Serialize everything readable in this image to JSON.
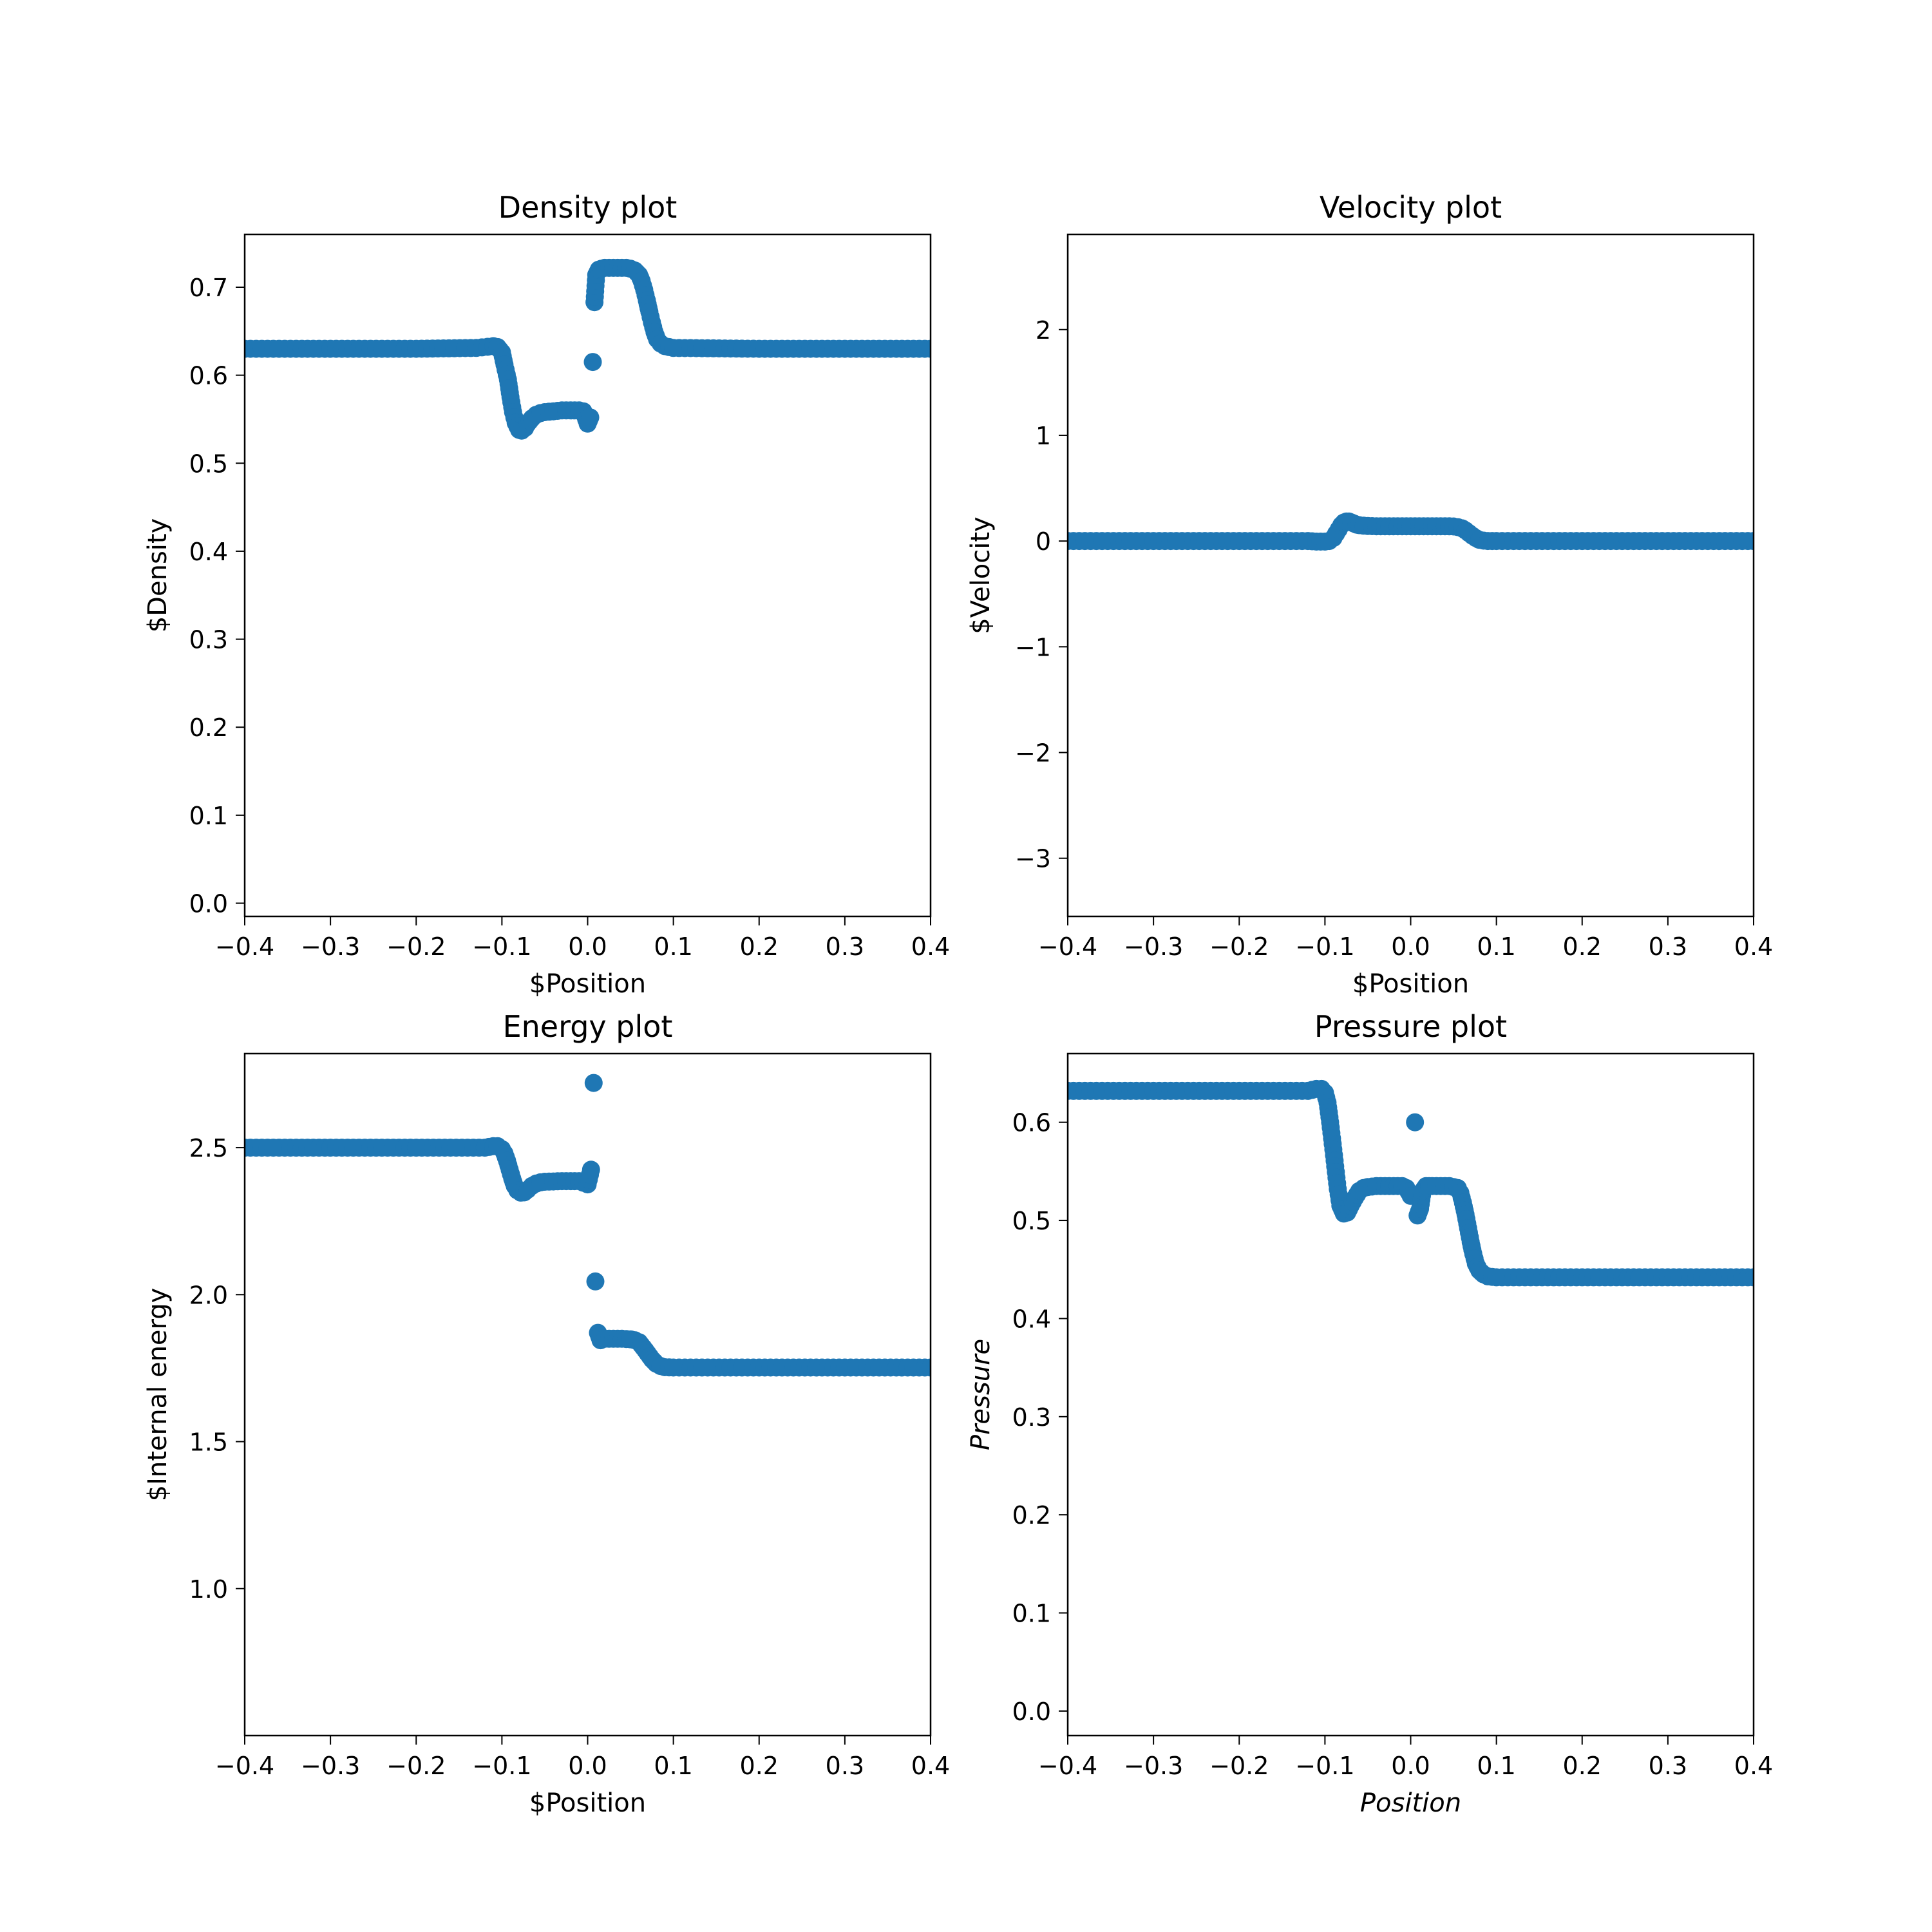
{
  "chart_data": [
    {
      "type": "scatter",
      "title": "Density plot",
      "xlabel": "$Position",
      "ylabel": "$Density",
      "xlim": [
        -0.4,
        0.4
      ],
      "ylim": [
        -0.015,
        0.76
      ],
      "xticks": [
        -0.4,
        -0.3,
        -0.2,
        -0.1,
        0.0,
        0.1,
        0.2,
        0.3,
        0.4
      ],
      "xtick_labels": [
        "−0.4",
        "−0.3",
        "−0.2",
        "−0.1",
        "0.0",
        "0.1",
        "0.2",
        "0.3",
        "0.4"
      ],
      "yticks": [
        0.0,
        0.1,
        0.2,
        0.3,
        0.4,
        0.5,
        0.6,
        0.7
      ],
      "ytick_labels": [
        "0.0",
        "0.1",
        "0.2",
        "0.3",
        "0.4",
        "0.5",
        "0.6",
        "0.7"
      ],
      "grid": false,
      "legend": "none",
      "color": "#1f77b4",
      "series": [
        {
          "x": [
            -0.4,
            -0.2,
            -0.13,
            -0.11,
            -0.105,
            -0.1,
            -0.097,
            -0.093,
            -0.09,
            -0.087,
            -0.084,
            -0.08,
            -0.077,
            -0.073,
            -0.07,
            -0.065,
            -0.06,
            -0.055,
            -0.05,
            -0.04,
            -0.03,
            -0.02,
            -0.01,
            -0.005,
            0.0,
            0.003,
            0.006,
            0.008,
            0.01,
            0.013,
            0.016,
            0.02,
            0.025,
            0.03,
            0.035,
            0.04,
            0.045,
            0.05,
            0.055,
            0.06,
            0.063,
            0.066,
            0.069,
            0.072,
            0.075,
            0.078,
            0.081,
            0.085,
            0.09,
            0.1,
            0.2,
            0.4
          ],
          "y": [
            0.63,
            0.63,
            0.631,
            0.633,
            0.632,
            0.626,
            0.612,
            0.595,
            0.575,
            0.558,
            0.546,
            0.538,
            0.537,
            0.54,
            0.545,
            0.551,
            0.555,
            0.557,
            0.558,
            0.559,
            0.56,
            0.56,
            0.56,
            0.559,
            0.545,
            0.552,
            0.615,
            0.683,
            0.714,
            0.72,
            0.721,
            0.722,
            0.722,
            0.722,
            0.722,
            0.722,
            0.722,
            0.721,
            0.719,
            0.714,
            0.707,
            0.697,
            0.685,
            0.672,
            0.66,
            0.649,
            0.641,
            0.636,
            0.633,
            0.631,
            0.63,
            0.63
          ]
        }
      ]
    },
    {
      "type": "scatter",
      "title": "Velocity plot",
      "xlabel": "$Position",
      "ylabel": "$Velocity",
      "xlim": [
        -0.4,
        0.4
      ],
      "ylim": [
        -3.55,
        2.9
      ],
      "xticks": [
        -0.4,
        -0.3,
        -0.2,
        -0.1,
        0.0,
        0.1,
        0.2,
        0.3,
        0.4
      ],
      "xtick_labels": [
        "−0.4",
        "−0.3",
        "−0.2",
        "−0.1",
        "0.0",
        "0.1",
        "0.2",
        "0.3",
        "0.4"
      ],
      "yticks": [
        -3,
        -2,
        -1,
        0,
        1,
        2
      ],
      "ytick_labels": [
        "−3",
        "−2",
        "−1",
        "0",
        "1",
        "2"
      ],
      "grid": false,
      "legend": "none",
      "color": "#1f77b4",
      "series": [
        {
          "x": [
            -0.4,
            -0.2,
            -0.12,
            -0.11,
            -0.1,
            -0.095,
            -0.09,
            -0.087,
            -0.084,
            -0.081,
            -0.078,
            -0.075,
            -0.072,
            -0.069,
            -0.066,
            -0.063,
            -0.06,
            -0.055,
            -0.05,
            -0.04,
            -0.03,
            -0.02,
            -0.01,
            0.0,
            0.01,
            0.02,
            0.03,
            0.04,
            0.05,
            0.055,
            0.06,
            0.064,
            0.068,
            0.072,
            0.076,
            0.08,
            0.085,
            0.09,
            0.1,
            0.2,
            0.4
          ],
          "y": [
            0.0,
            0.0,
            0.0,
            -0.005,
            -0.005,
            0.0,
            0.03,
            0.07,
            0.11,
            0.15,
            0.175,
            0.185,
            0.185,
            0.175,
            0.165,
            0.155,
            0.15,
            0.145,
            0.142,
            0.14,
            0.14,
            0.14,
            0.14,
            0.14,
            0.14,
            0.14,
            0.14,
            0.14,
            0.138,
            0.132,
            0.12,
            0.1,
            0.075,
            0.05,
            0.028,
            0.012,
            0.004,
            0.0,
            0.0,
            0.0,
            0.0
          ]
        }
      ]
    },
    {
      "type": "scatter",
      "title": "Energy plot",
      "xlabel": "$Position",
      "ylabel": "$Internal energy",
      "xlim": [
        -0.4,
        0.4
      ],
      "ylim": [
        0.5,
        2.82
      ],
      "xticks": [
        -0.4,
        -0.3,
        -0.2,
        -0.1,
        0.0,
        0.1,
        0.2,
        0.3,
        0.4
      ],
      "xtick_labels": [
        "−0.4",
        "−0.3",
        "−0.2",
        "−0.1",
        "0.0",
        "0.1",
        "0.2",
        "0.3",
        "0.4"
      ],
      "yticks": [
        1.0,
        1.5,
        2.0,
        2.5
      ],
      "ytick_labels": [
        "1.0",
        "1.5",
        "2.0",
        "2.5"
      ],
      "grid": false,
      "legend": "none",
      "color": "#1f77b4",
      "series": [
        {
          "x": [
            -0.4,
            -0.2,
            -0.12,
            -0.11,
            -0.105,
            -0.1,
            -0.097,
            -0.094,
            -0.091,
            -0.088,
            -0.085,
            -0.082,
            -0.078,
            -0.074,
            -0.07,
            -0.065,
            -0.06,
            -0.055,
            -0.05,
            -0.04,
            -0.03,
            -0.02,
            -0.01,
            0.0,
            0.004,
            0.007,
            0.009,
            0.012,
            0.015,
            0.02,
            0.03,
            0.04,
            0.05,
            0.055,
            0.06,
            0.065,
            0.07,
            0.075,
            0.08,
            0.085,
            0.09,
            0.1,
            0.2,
            0.4
          ],
          "y": [
            2.5,
            2.5,
            2.5,
            2.505,
            2.505,
            2.495,
            2.48,
            2.455,
            2.425,
            2.395,
            2.37,
            2.355,
            2.347,
            2.348,
            2.357,
            2.37,
            2.378,
            2.382,
            2.384,
            2.385,
            2.386,
            2.386,
            2.386,
            2.375,
            2.425,
            2.72,
            2.045,
            1.87,
            1.845,
            1.85,
            1.85,
            1.85,
            1.848,
            1.845,
            1.838,
            1.82,
            1.8,
            1.78,
            1.765,
            1.757,
            1.753,
            1.752,
            1.752,
            1.752
          ]
        }
      ]
    },
    {
      "type": "scatter",
      "title": "Pressure plot",
      "xlabel": "Position",
      "ylabel": "Pressure",
      "xlim": [
        -0.4,
        0.4
      ],
      "ylim": [
        -0.025,
        0.67
      ],
      "xticks": [
        -0.4,
        -0.3,
        -0.2,
        -0.1,
        0.0,
        0.1,
        0.2,
        0.3,
        0.4
      ],
      "xtick_labels": [
        "−0.4",
        "−0.3",
        "−0.2",
        "−0.1",
        "0.0",
        "0.1",
        "0.2",
        "0.3",
        "0.4"
      ],
      "yticks": [
        0.0,
        0.1,
        0.2,
        0.3,
        0.4,
        0.5,
        0.6
      ],
      "ytick_labels": [
        "0.0",
        "0.1",
        "0.2",
        "0.3",
        "0.4",
        "0.5",
        "0.6"
      ],
      "grid": false,
      "legend": "none",
      "color": "#1f77b4",
      "series": [
        {
          "x": [
            -0.4,
            -0.2,
            -0.12,
            -0.11,
            -0.104,
            -0.1,
            -0.097,
            -0.094,
            -0.091,
            -0.088,
            -0.085,
            -0.082,
            -0.078,
            -0.074,
            -0.07,
            -0.065,
            -0.06,
            -0.055,
            -0.05,
            -0.04,
            -0.03,
            -0.02,
            -0.01,
            -0.005,
            0.0,
            0.005,
            0.008,
            0.011,
            0.014,
            0.018,
            0.025,
            0.035,
            0.045,
            0.055,
            0.058,
            0.061,
            0.064,
            0.067,
            0.07,
            0.073,
            0.076,
            0.08,
            0.085,
            0.09,
            0.1,
            0.2,
            0.4
          ],
          "y": [
            0.632,
            0.632,
            0.632,
            0.634,
            0.634,
            0.63,
            0.62,
            0.6,
            0.578,
            0.555,
            0.532,
            0.515,
            0.507,
            0.508,
            0.515,
            0.523,
            0.53,
            0.533,
            0.534,
            0.535,
            0.535,
            0.535,
            0.535,
            0.533,
            0.525,
            0.6,
            0.505,
            0.512,
            0.53,
            0.535,
            0.535,
            0.535,
            0.535,
            0.533,
            0.528,
            0.518,
            0.506,
            0.492,
            0.478,
            0.466,
            0.456,
            0.449,
            0.445,
            0.443,
            0.442,
            0.442,
            0.442
          ]
        }
      ]
    }
  ]
}
